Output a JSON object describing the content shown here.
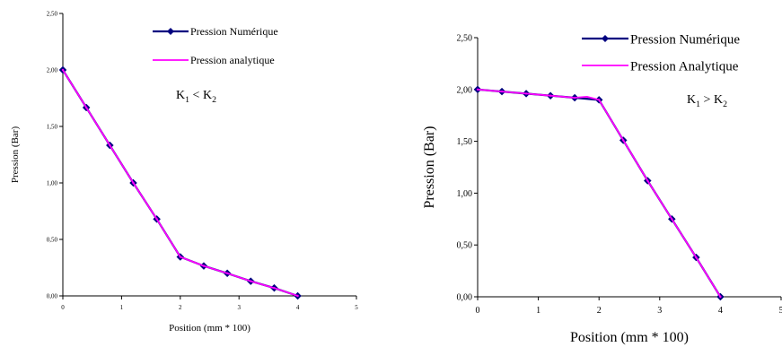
{
  "chart_data": [
    {
      "type": "line",
      "title": "",
      "xlabel": "Position (mm * 100)",
      "ylabel": "Pression (Bar)",
      "xlim": [
        0,
        5
      ],
      "ylim": [
        0,
        2.5
      ],
      "x_ticks": [
        "0",
        "1",
        "2",
        "3",
        "4",
        "5"
      ],
      "y_ticks": [
        "0,00",
        "0,50",
        "1,00",
        "1,50",
        "2,00",
        "2,50"
      ],
      "grid": false,
      "legend_position": "top-right",
      "annotation": {
        "left": "K",
        "sub1": "1",
        "op": "<",
        "right": "K",
        "sub2": "2"
      },
      "series": [
        {
          "name": "Pression Numérique",
          "color": "#000080",
          "marker": "diamond",
          "x": [
            0,
            0.4,
            0.8,
            1.2,
            1.6,
            2.0,
            2.4,
            2.8,
            3.2,
            3.6,
            4.0
          ],
          "y": [
            2.0,
            1.667,
            1.333,
            1.0,
            0.68,
            0.345,
            0.265,
            0.2,
            0.13,
            0.07,
            0.0
          ]
        },
        {
          "name": "Pression analytique",
          "color": "#ff00ff",
          "marker": "none",
          "x": [
            0,
            0.4,
            0.8,
            1.2,
            1.6,
            2.0,
            2.4,
            2.8,
            3.2,
            3.6,
            4.0
          ],
          "y": [
            2.0,
            1.667,
            1.333,
            1.0,
            0.68,
            0.345,
            0.265,
            0.2,
            0.13,
            0.07,
            0.0
          ]
        }
      ]
    },
    {
      "type": "line",
      "title": "",
      "xlabel": "Position (mm * 100)",
      "ylabel": "Pression (Bar)",
      "xlim": [
        0,
        5
      ],
      "ylim": [
        0,
        2.5
      ],
      "x_ticks": [
        "0",
        "1",
        "2",
        "3",
        "4",
        "5"
      ],
      "y_ticks": [
        "0,00",
        "0,50",
        "1,00",
        "1,50",
        "2,00",
        "2,50"
      ],
      "grid": false,
      "legend_position": "top-right",
      "annotation": {
        "left": "K",
        "sub1": "1",
        "op": ">",
        "right": "K",
        "sub2": "2"
      },
      "series": [
        {
          "name": "Pression Numérique",
          "color": "#000080",
          "marker": "diamond",
          "x": [
            0,
            0.4,
            0.8,
            1.2,
            1.6,
            2.0,
            2.4,
            2.8,
            3.2,
            3.6,
            4.0
          ],
          "y": [
            2.0,
            1.98,
            1.96,
            1.94,
            1.92,
            1.9,
            1.51,
            1.12,
            0.75,
            0.38,
            0.0
          ]
        },
        {
          "name": "Pression Analytique",
          "color": "#ff00ff",
          "marker": "none",
          "x": [
            0,
            0.4,
            0.8,
            1.2,
            1.6,
            1.8,
            2.0,
            2.4,
            2.8,
            3.2,
            3.6,
            4.0
          ],
          "y": [
            2.0,
            1.98,
            1.96,
            1.94,
            1.92,
            1.93,
            1.9,
            1.51,
            1.12,
            0.75,
            0.38,
            0.0
          ]
        }
      ]
    }
  ]
}
